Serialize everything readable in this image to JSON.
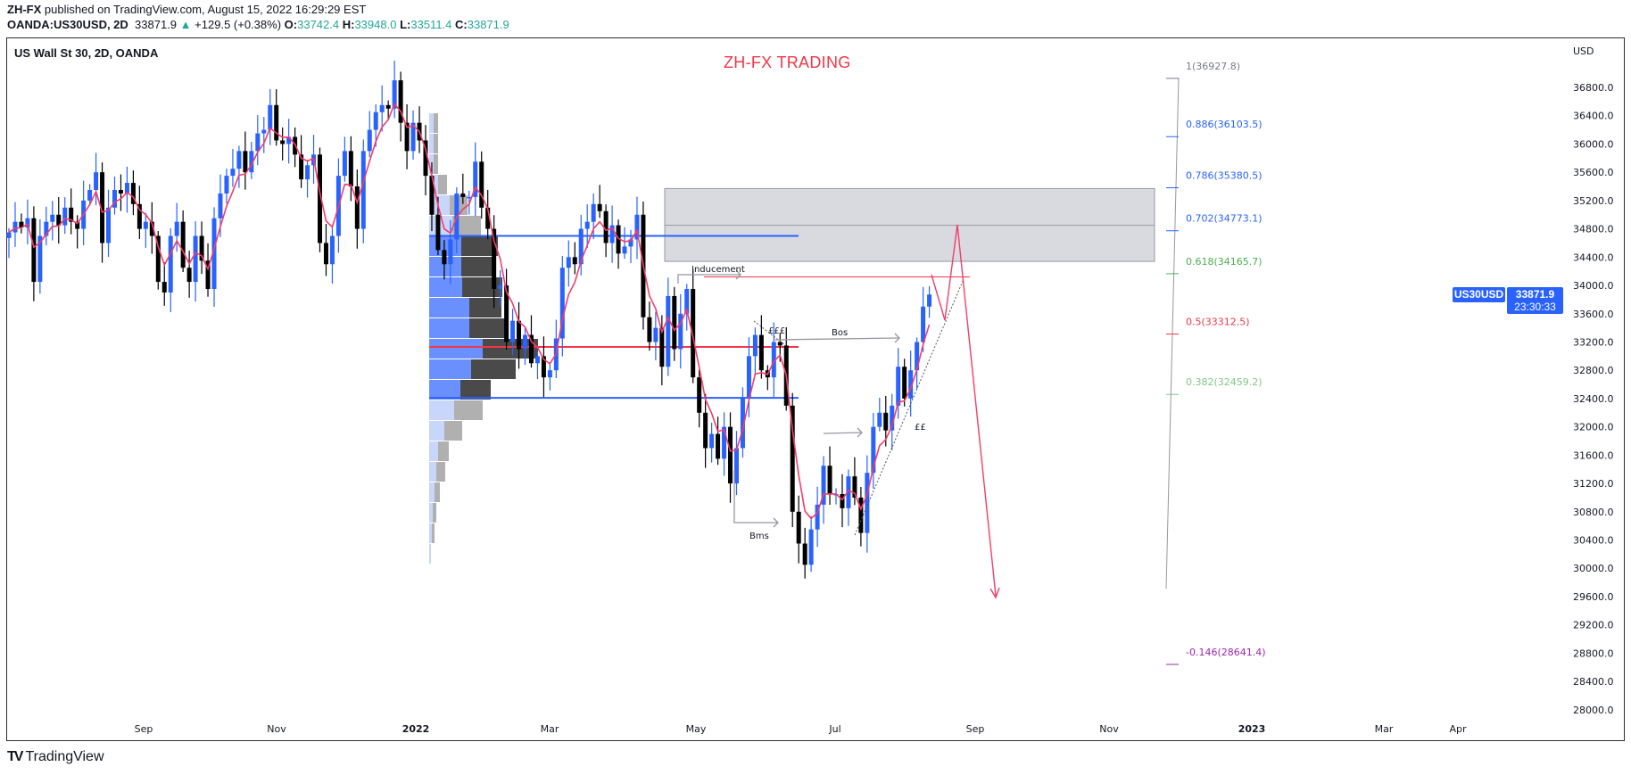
{
  "header": {
    "author": "ZH-FX",
    "published": "published on TradingView.com, August 15, 2022 16:29:29 EST",
    "symbol": "OANDA:US30USD, 2D",
    "last": "33871.9",
    "change": "+129.5 (+0.38%)",
    "o_label": "O:",
    "o": "33742.4",
    "h_label": "H:",
    "h": "33948.0",
    "l_label": "L:",
    "l": "33511.4",
    "c_label": "C:",
    "c": "33871.9"
  },
  "chart": {
    "title": "US Wall St 30, 2D, OANDA",
    "brand_title": "ZH-FX TRADING",
    "currency": "USD",
    "symbol_tag": "US30USD",
    "price_tag": "33871.9",
    "countdown": "23:30:33"
  },
  "colors": {
    "up": "#2962ff",
    "down": "#000000",
    "ma": "#f23d6b",
    "accent": "#2962ff",
    "brand": "#f23645"
  },
  "annotations": {
    "inducement": "Inducement",
    "eqh": "£££",
    "bos": "Bos",
    "bms": "Bms",
    "eql": "££"
  },
  "fib_levels": [
    {
      "label": "1(36927.8)",
      "price": 36927.8,
      "color": "#787b86"
    },
    {
      "label": "0.886(36103.5)",
      "price": 36103.5,
      "color": "#2962ff"
    },
    {
      "label": "0.786(35380.5)",
      "price": 35380.5,
      "color": "#2962ff"
    },
    {
      "label": "0.702(34773.1)",
      "price": 34773.1,
      "color": "#2962ff"
    },
    {
      "label": "0.618(34165.7)",
      "price": 34165.7,
      "color": "#4caf50"
    },
    {
      "label": "0.5(33312.5)",
      "price": 33312.5,
      "color": "#f23645"
    },
    {
      "label": "0.382(32459.2)",
      "price": 32459.2,
      "color": "#81c784"
    },
    {
      "label": "-0.146(28641.4)",
      "price": 28641.4,
      "color": "#9c27b0"
    }
  ],
  "footer": {
    "logo": "TradingView"
  },
  "chart_data": {
    "type": "candlestick",
    "interval": "2D",
    "y_ticks": [
      "36800.0",
      "36400.0",
      "36000.0",
      "35600.0",
      "35200.0",
      "34800.0",
      "34400.0",
      "34000.0",
      "33600.0",
      "33200.0",
      "32800.0",
      "32400.0",
      "32000.0",
      "31600.0",
      "31200.0",
      "30800.0",
      "30400.0",
      "30000.0",
      "29600.0",
      "29200.0",
      "28800.0",
      "28400.0",
      "28000.0"
    ],
    "x_ticks": [
      "Sep",
      "Nov",
      "2022",
      "Mar",
      "May",
      "Jul",
      "Sep",
      "Nov",
      "2023",
      "Mar",
      "Apr"
    ],
    "ylim": [
      27600,
      37400
    ],
    "closes": [
      34750,
      34900,
      34820,
      34950,
      34050,
      34700,
      34900,
      35000,
      34850,
      35100,
      34900,
      34800,
      35200,
      35350,
      35600,
      34600,
      35100,
      35350,
      35300,
      35450,
      35150,
      34800,
      34900,
      34700,
      34050,
      33900,
      34700,
      34900,
      34250,
      34050,
      34700,
      34350,
      33950,
      34950,
      35300,
      35550,
      35650,
      35900,
      35600,
      35900,
      36150,
      36200,
      36550,
      36050,
      36000,
      36100,
      35850,
      35500,
      35700,
      35850,
      34600,
      34300,
      34700,
      35550,
      35900,
      35400,
      34800,
      35900,
      36200,
      36450,
      36550,
      36500,
      36900,
      36300,
      35900,
      36300,
      36050,
      35550,
      35000,
      34500,
      34300,
      34650,
      35300,
      35250,
      35250,
      35750,
      35100,
      34800,
      33950,
      34000,
      33200,
      33500,
      33100,
      33300,
      32900,
      33000,
      32700,
      32800,
      33250,
      34250,
      34400,
      34300,
      34800,
      34900,
      35150,
      35050,
      34600,
      34850,
      34450,
      34550,
      34650,
      35000,
      33550,
      33200,
      33400,
      32850,
      33850,
      33100,
      33600,
      33950,
      32700,
      32200,
      31700,
      31900,
      31550,
      32000,
      31200,
      31700,
      32400,
      33000,
      33300,
      32800,
      32700,
      33200,
      33150,
      32300,
      30800,
      30350,
      30050,
      30550,
      30900,
      31450,
      31050,
      31050,
      30850,
      31300,
      31000,
      30500,
      31350,
      32000,
      32200,
      31950,
      32300,
      32850,
      32400,
      32800,
      33200,
      33700,
      33871.9
    ],
    "levels": {
      "upper_blue": 34700,
      "poc_red": 33130,
      "lower_blue": 32410,
      "zone_top": 35370,
      "zone_mid": 34850,
      "zone_bottom": 34340,
      "inducement": 34120
    },
    "volume_profile": {
      "rows_up": [
        5,
        5,
        5,
        10,
        23,
        26,
        36,
        36,
        37,
        45,
        45,
        60,
        47,
        35,
        28,
        17,
        10,
        8,
        6,
        4,
        3,
        2
      ],
      "rows_down": [
        5,
        5,
        5,
        10,
        20,
        32,
        41,
        35,
        45,
        36,
        42,
        62,
        50,
        34,
        32,
        20,
        12,
        10,
        6,
        4,
        3,
        0
      ],
      "value_area_rows": [
        6,
        13
      ]
    }
  }
}
